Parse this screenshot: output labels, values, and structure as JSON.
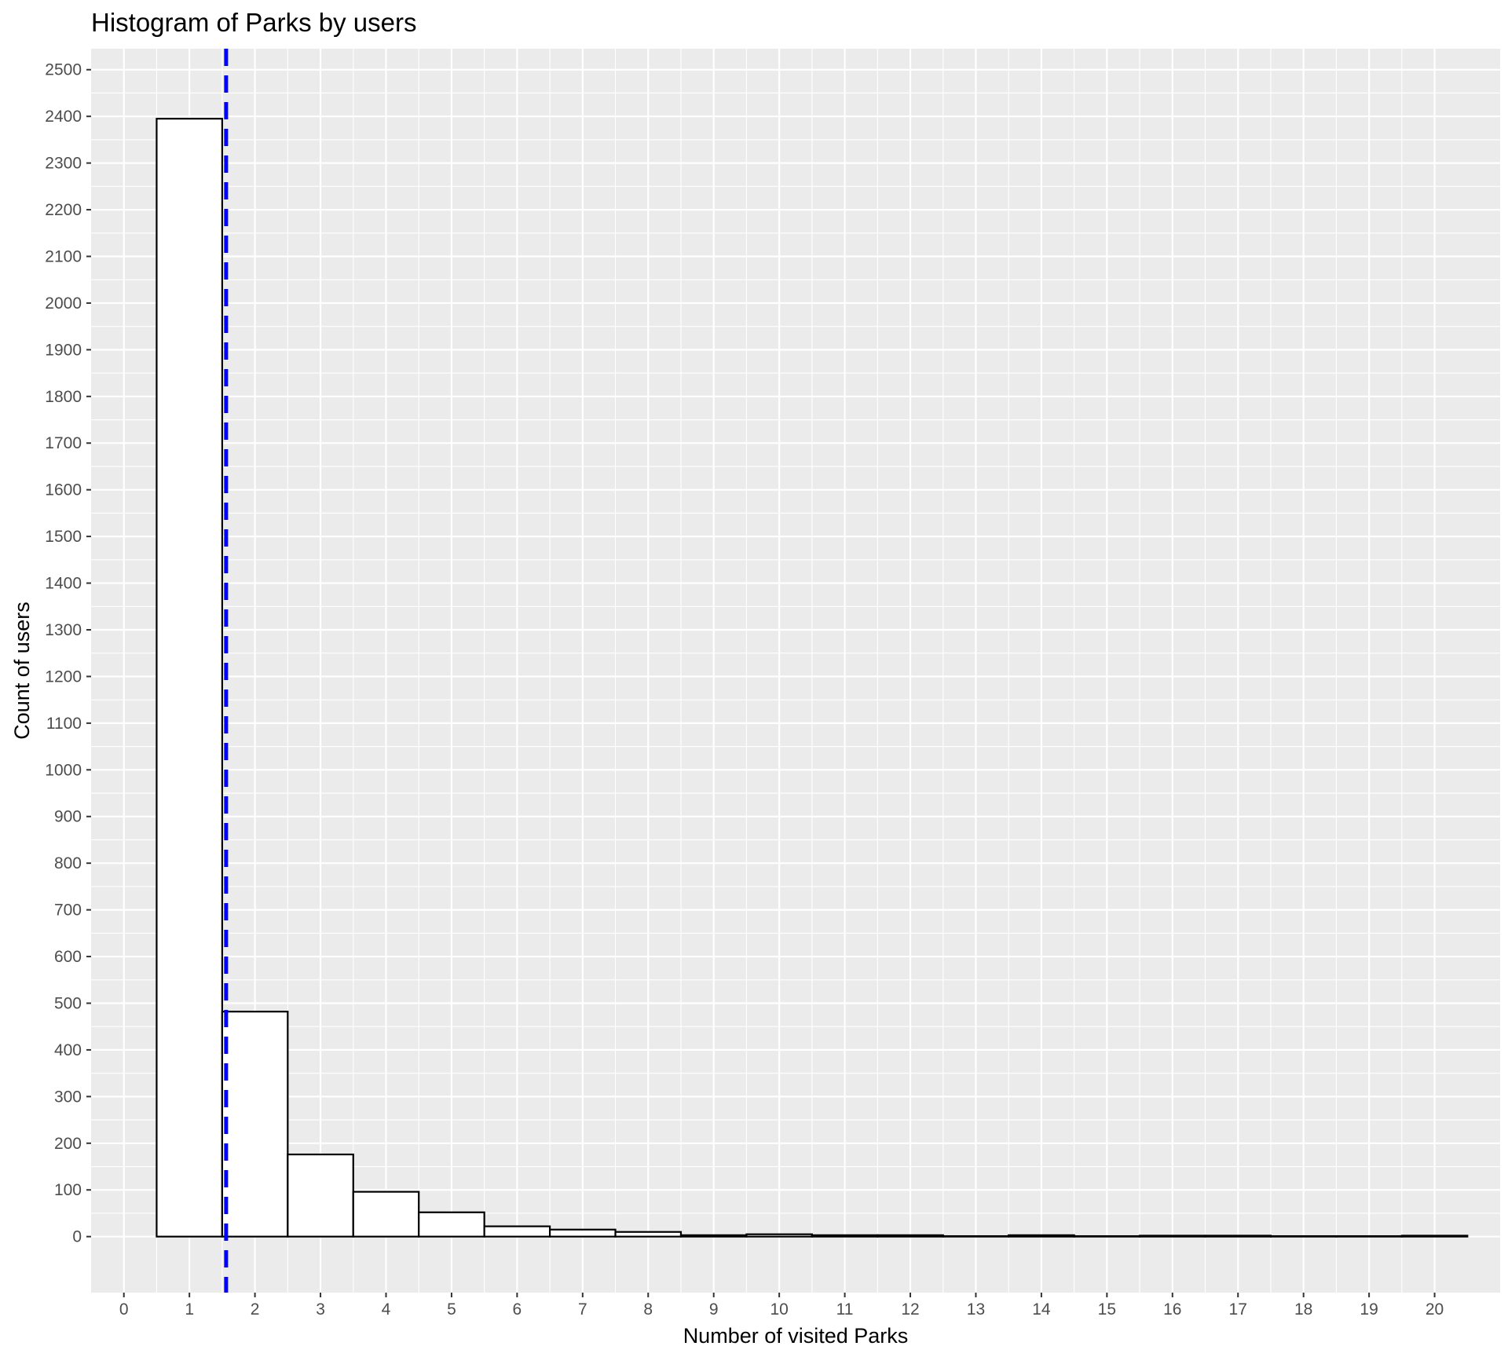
{
  "chart_data": {
    "type": "bar",
    "title": "Histogram of Parks by users",
    "xlabel": "Number of visited Parks",
    "ylabel": "Count of users",
    "x": [
      1,
      2,
      3,
      4,
      5,
      6,
      7,
      8,
      9,
      10,
      11,
      12,
      13,
      14,
      15,
      16,
      17,
      18,
      19,
      20
    ],
    "values": [
      2395,
      482,
      176,
      96,
      52,
      22,
      15,
      10,
      3,
      5,
      3,
      3,
      1,
      3,
      1,
      2,
      2,
      1,
      1,
      2
    ],
    "bin_width": 1,
    "xlim": [
      -0.5,
      21
    ],
    "ylim": [
      -120,
      2545
    ],
    "x_ticks": [
      0,
      1,
      2,
      3,
      4,
      5,
      6,
      7,
      8,
      9,
      10,
      11,
      12,
      13,
      14,
      15,
      16,
      17,
      18,
      19,
      20
    ],
    "y_ticks": [
      0,
      100,
      200,
      300,
      400,
      500,
      600,
      700,
      800,
      900,
      1000,
      1100,
      1200,
      1300,
      1400,
      1500,
      1600,
      1700,
      1800,
      1900,
      2000,
      2100,
      2200,
      2300,
      2400,
      2500
    ],
    "reference_line": {
      "x": 1.56,
      "style": "dashed",
      "color": "#0000ff"
    },
    "bar_fill": "#ffffff",
    "bar_outline": "#000000",
    "panel_background": "#ebebeb",
    "grid": true,
    "legend": "none"
  }
}
